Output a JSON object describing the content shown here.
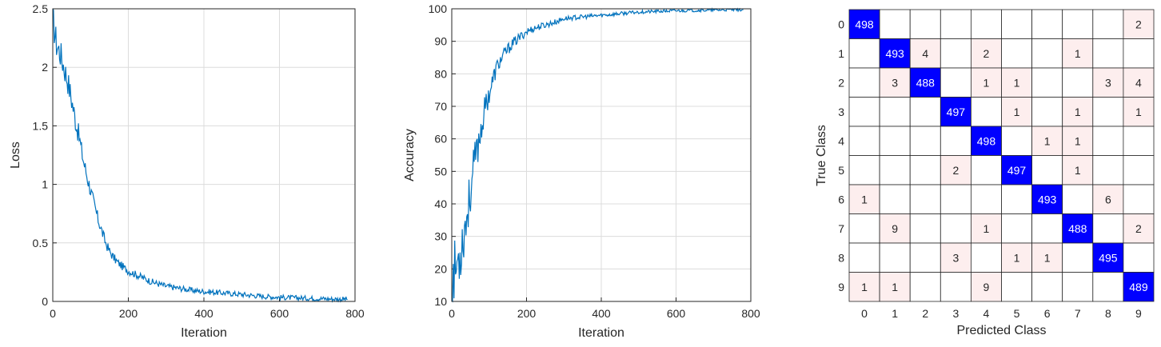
{
  "colors": {
    "line": "#0072BD",
    "axis": "#262626",
    "grid": "#dcdcdc",
    "diag": "#0000ff",
    "offdiag": "#fdeeee",
    "diag_text": "#ffffff",
    "off_text": "#262626"
  },
  "chart_data": [
    {
      "type": "line",
      "xlabel": "Iteration",
      "ylabel": "Loss",
      "xlim": [
        0,
        800
      ],
      "ylim": [
        0,
        2.5
      ],
      "xticks": [
        "0",
        "200",
        "400",
        "600",
        "800"
      ],
      "yticks": [
        "0",
        "0.5",
        "1",
        "1.5",
        "2",
        "2.5"
      ],
      "grid": true,
      "series": [
        {
          "x": [
            0,
            5,
            10,
            20,
            30,
            40,
            50,
            60,
            70,
            80,
            90,
            100,
            110,
            120,
            130,
            140,
            150,
            160,
            170,
            180,
            200,
            220,
            240,
            260,
            280,
            300,
            340,
            380,
            420,
            460,
            500,
            550,
            600,
            650,
            700,
            750,
            780
          ],
          "y": [
            2.42,
            2.3,
            2.2,
            2.12,
            2.0,
            1.88,
            1.72,
            1.55,
            1.4,
            1.22,
            1.08,
            0.95,
            0.82,
            0.7,
            0.6,
            0.5,
            0.43,
            0.38,
            0.34,
            0.31,
            0.26,
            0.23,
            0.2,
            0.17,
            0.15,
            0.13,
            0.11,
            0.09,
            0.08,
            0.07,
            0.06,
            0.045,
            0.035,
            0.03,
            0.025,
            0.02,
            0.02
          ]
        }
      ]
    },
    {
      "type": "line",
      "xlabel": "Iteration",
      "ylabel": "Accuracy",
      "xlim": [
        0,
        800
      ],
      "ylim": [
        10,
        100
      ],
      "xticks": [
        "0",
        "200",
        "400",
        "600",
        "800"
      ],
      "yticks": [
        "10",
        "20",
        "30",
        "40",
        "50",
        "60",
        "70",
        "80",
        "90",
        "100"
      ],
      "grid": true,
      "series": [
        {
          "x": [
            0,
            5,
            10,
            20,
            30,
            40,
            50,
            60,
            70,
            80,
            90,
            100,
            110,
            120,
            140,
            160,
            180,
            200,
            220,
            250,
            280,
            300,
            350,
            400,
            450,
            500,
            550,
            600,
            650,
            700,
            750,
            780
          ],
          "y": [
            14,
            18,
            20,
            24,
            30,
            36,
            44,
            52,
            58,
            64,
            70,
            74,
            78,
            82,
            86,
            89,
            91,
            93,
            94,
            95,
            96,
            97,
            97.5,
            98,
            98.5,
            99,
            99.2,
            99.4,
            99.5,
            99.6,
            99.7,
            99.7
          ]
        }
      ]
    },
    {
      "type": "heatmap",
      "xlabel": "Predicted Class",
      "ylabel": "True Class",
      "classes": [
        "0",
        "1",
        "2",
        "3",
        "4",
        "5",
        "6",
        "7",
        "8",
        "9"
      ],
      "matrix": [
        [
          498,
          0,
          0,
          0,
          0,
          0,
          0,
          0,
          0,
          2
        ],
        [
          0,
          493,
          4,
          0,
          2,
          0,
          0,
          1,
          0,
          0
        ],
        [
          0,
          3,
          488,
          0,
          1,
          1,
          0,
          0,
          3,
          4
        ],
        [
          0,
          0,
          0,
          497,
          0,
          1,
          0,
          1,
          0,
          1
        ],
        [
          0,
          0,
          0,
          0,
          498,
          0,
          1,
          1,
          0,
          0
        ],
        [
          0,
          0,
          0,
          2,
          0,
          497,
          0,
          1,
          0,
          0
        ],
        [
          1,
          0,
          0,
          0,
          0,
          0,
          493,
          0,
          6,
          0
        ],
        [
          0,
          9,
          0,
          0,
          1,
          0,
          0,
          488,
          0,
          2
        ],
        [
          0,
          0,
          0,
          3,
          0,
          1,
          1,
          0,
          495,
          0
        ],
        [
          1,
          1,
          0,
          0,
          9,
          0,
          0,
          0,
          0,
          489
        ]
      ]
    }
  ]
}
